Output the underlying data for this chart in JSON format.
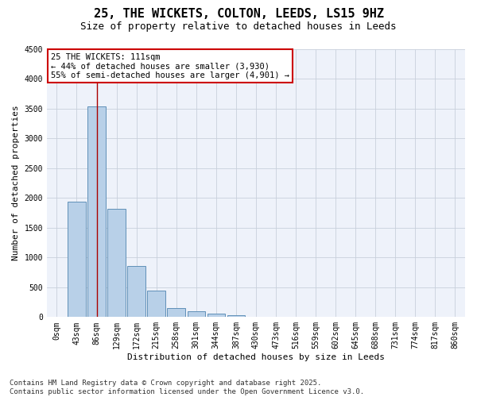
{
  "title_line1": "25, THE WICKETS, COLTON, LEEDS, LS15 9HZ",
  "title_line2": "Size of property relative to detached houses in Leeds",
  "xlabel": "Distribution of detached houses by size in Leeds",
  "ylabel": "Number of detached properties",
  "categories": [
    "0sqm",
    "43sqm",
    "86sqm",
    "129sqm",
    "172sqm",
    "215sqm",
    "258sqm",
    "301sqm",
    "344sqm",
    "387sqm",
    "430sqm",
    "473sqm",
    "516sqm",
    "559sqm",
    "602sqm",
    "645sqm",
    "688sqm",
    "731sqm",
    "774sqm",
    "817sqm",
    "860sqm"
  ],
  "values": [
    5,
    1930,
    3530,
    1810,
    860,
    440,
    150,
    95,
    55,
    35,
    0,
    0,
    0,
    0,
    0,
    0,
    0,
    0,
    0,
    0,
    0
  ],
  "bar_color": "#b8d0e8",
  "bar_edge_color": "#6090b8",
  "background_color": "#eef2fa",
  "ylim": [
    0,
    4500
  ],
  "yticks": [
    0,
    500,
    1000,
    1500,
    2000,
    2500,
    3000,
    3500,
    4000,
    4500
  ],
  "annotation_line1": "25 THE WICKETS: 111sqm",
  "annotation_line2": "← 44% of detached houses are smaller (3,930)",
  "annotation_line3": "55% of semi-detached houses are larger (4,901) →",
  "annotation_box_color": "#ffffff",
  "annotation_box_edge_color": "#cc0000",
  "vline_color": "#aa0000",
  "vline_x_bin": 2,
  "footer_text": "Contains HM Land Registry data © Crown copyright and database right 2025.\nContains public sector information licensed under the Open Government Licence v3.0.",
  "title_fontsize": 11,
  "subtitle_fontsize": 9,
  "axis_label_fontsize": 8,
  "tick_fontsize": 7,
  "annotation_fontsize": 7.5,
  "footer_fontsize": 6.5
}
